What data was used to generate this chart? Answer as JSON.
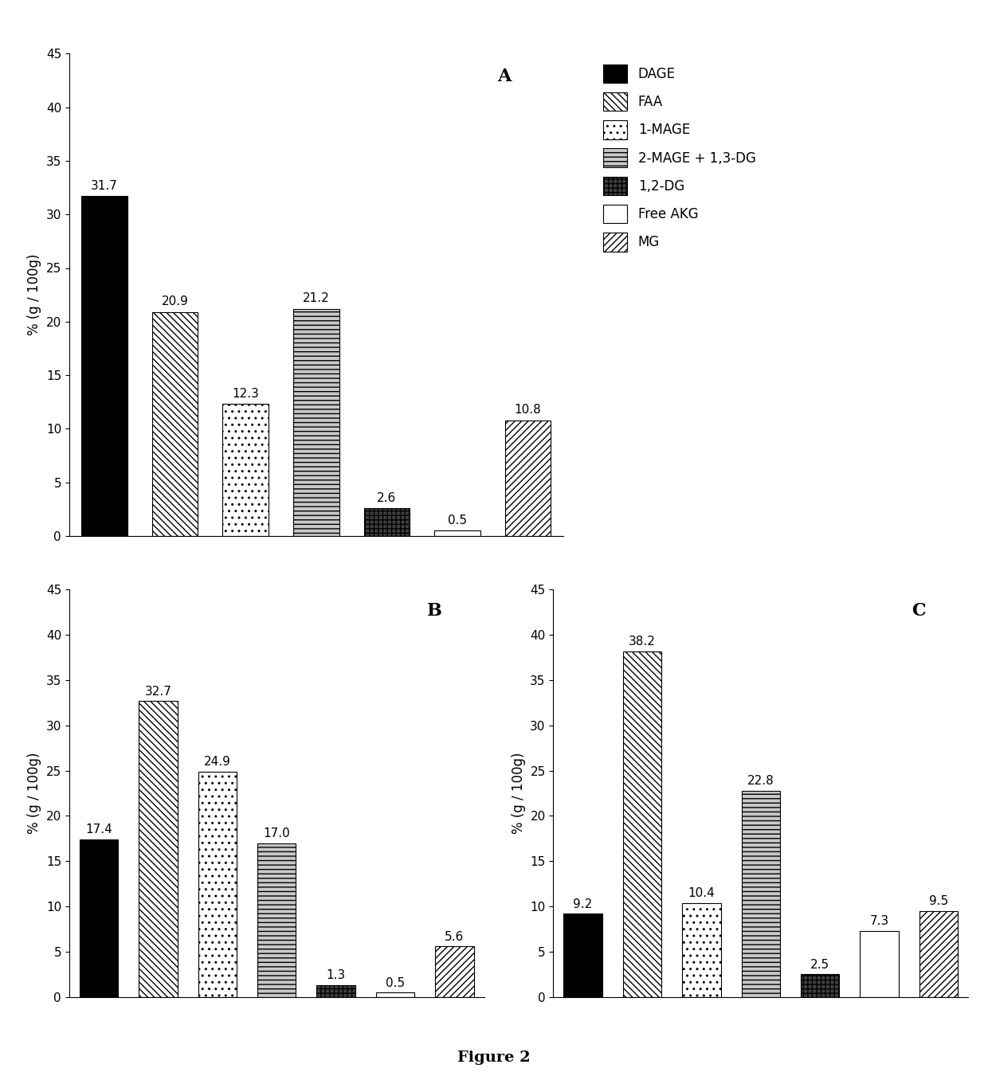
{
  "chart_A": {
    "label": "A",
    "values": [
      31.7,
      20.9,
      12.3,
      21.2,
      2.6,
      0.5,
      10.8
    ],
    "ylim": [
      0,
      45
    ],
    "yticks": [
      0,
      5,
      10,
      15,
      20,
      25,
      30,
      35,
      40,
      45
    ]
  },
  "chart_B": {
    "label": "B",
    "values": [
      17.4,
      32.7,
      24.9,
      17.0,
      1.3,
      0.5,
      5.6
    ],
    "ylim": [
      0,
      45
    ],
    "yticks": [
      0,
      5,
      10,
      15,
      20,
      25,
      30,
      35,
      40,
      45
    ]
  },
  "chart_C": {
    "label": "C",
    "values": [
      9.2,
      38.2,
      10.4,
      22.8,
      2.5,
      7.3,
      9.5
    ],
    "ylim": [
      0,
      45
    ],
    "yticks": [
      0,
      5,
      10,
      15,
      20,
      25,
      30,
      35,
      40,
      45
    ]
  },
  "ylabel": "% (g / 100g)",
  "figure_label": "Figure 2",
  "legend_labels": [
    "DAGE",
    "FAA",
    "1-MAGE",
    "2-MAGE + 1,3-DG",
    "1,2-DG",
    "Free AKG",
    "MG"
  ],
  "face_colors": [
    "#000000",
    "#ffffff",
    "#ffffff",
    "#c8c8c8",
    "#404040",
    "#ffffff",
    "#ffffff"
  ],
  "edge_colors": [
    "#000000",
    "#000000",
    "#000000",
    "#000000",
    "#000000",
    "#000000",
    "#000000"
  ],
  "hatches": [
    "",
    "\\\\\\\\",
    "..",
    "---",
    "+++",
    "",
    "////"
  ],
  "bar_label_fontsize": 11,
  "axis_label_fontsize": 12,
  "tick_fontsize": 11,
  "panel_label_fontsize": 16,
  "legend_fontsize": 12,
  "figure_label_fontsize": 14
}
